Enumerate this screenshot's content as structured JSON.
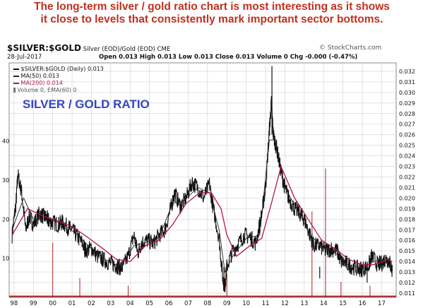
{
  "caption": {
    "line1": "The long-term silver / gold ratio chart is most interesting as it shows",
    "line2": "it close to levels that consistently mark important sector bottoms."
  },
  "header": {
    "symbol": "$SILVER:$GOLD",
    "description": "Silver (EOD)/Gold (EOD) CME",
    "brand": "© StockCharts.com",
    "date": "28-Jul-2017",
    "quote": "Open 0.013  High 0.013  Low 0.013  Close 0.013  Volume 0  Chg -0.000 (-0.47%)"
  },
  "legend": {
    "main": "$SILVER:$GOLD (Daily) 0.013",
    "ma50": "MA(50) 0.013",
    "ma200": "MA(200) 0.014",
    "volume": "Volume 0, EMA(60) 0"
  },
  "overlay_label": "SILVER / GOLD RATIO",
  "colors": {
    "caption": "#c03020",
    "price": "#111111",
    "ma50": "#222222",
    "ma200": "#b01848",
    "volume": "#b02020",
    "overlay": "#3545c0",
    "grid": "#d0d0d0"
  },
  "chart_data": {
    "type": "line",
    "title": "$SILVER:$GOLD",
    "x_label": "",
    "y_label": "",
    "grid": true,
    "x_ticks": [
      "98",
      "99",
      "00",
      "01",
      "02",
      "03",
      "04",
      "05",
      "06",
      "07",
      "08",
      "09",
      "10",
      "11",
      "12",
      "13",
      "14",
      "15",
      "16",
      "17"
    ],
    "y_ticks": [
      0.011,
      0.012,
      0.013,
      0.014,
      0.015,
      0.016,
      0.017,
      0.018,
      0.019,
      0.02,
      0.021,
      0.022,
      0.023,
      0.024,
      0.025,
      0.026,
      0.027,
      0.028,
      0.029,
      0.03,
      0.031,
      0.032
    ],
    "y_range": [
      0.0106,
      0.0328
    ],
    "x_range": [
      1997.75,
      2017.75
    ],
    "volume_ticks": [
      10,
      20,
      30,
      40
    ],
    "volume_range": [
      0,
      60
    ],
    "series": [
      {
        "name": "$SILVER:$GOLD (Daily)",
        "x": [
          1997.9,
          1998.1,
          1998.2,
          1998.4,
          1998.6,
          1998.8,
          1999.0,
          1999.3,
          1999.5,
          1999.7,
          1999.8,
          2000.0,
          2000.3,
          2000.5,
          2000.8,
          2001.0,
          2001.3,
          2001.6,
          2001.7,
          2002.0,
          2002.3,
          2002.6,
          2002.9,
          2003.2,
          2003.4,
          2003.6,
          2003.9,
          2004.2,
          2004.4,
          2004.6,
          2004.9,
          2005.2,
          2005.5,
          2005.8,
          2006.1,
          2006.3,
          2006.6,
          2006.9,
          2007.2,
          2007.5,
          2007.8,
          2008.1,
          2008.3,
          2008.6,
          2008.8,
          2008.9,
          2009.0,
          2009.3,
          2009.6,
          2009.9,
          2010.2,
          2010.5,
          2010.8,
          2011.0,
          2011.2,
          2011.3,
          2011.4,
          2011.6,
          2011.8,
          2012.0,
          2012.2,
          2012.5,
          2012.8,
          2013.0,
          2013.3,
          2013.5,
          2013.8,
          2014.1,
          2014.4,
          2014.7,
          2014.9,
          2015.2,
          2015.5,
          2015.8,
          2016.0,
          2016.3,
          2016.5,
          2016.8,
          2017.0,
          2017.2,
          2017.4,
          2017.55
        ],
        "values": [
          0.0165,
          0.0195,
          0.0222,
          0.0205,
          0.017,
          0.0183,
          0.0175,
          0.0185,
          0.0183,
          0.0181,
          0.0178,
          0.0177,
          0.0175,
          0.0177,
          0.0172,
          0.017,
          0.0163,
          0.0155,
          0.015,
          0.0153,
          0.0145,
          0.0142,
          0.0139,
          0.0137,
          0.0135,
          0.0134,
          0.0145,
          0.0165,
          0.0148,
          0.0158,
          0.016,
          0.0157,
          0.0165,
          0.017,
          0.019,
          0.0205,
          0.0192,
          0.02,
          0.0215,
          0.021,
          0.02,
          0.0213,
          0.019,
          0.0162,
          0.0122,
          0.0117,
          0.0135,
          0.015,
          0.0157,
          0.0165,
          0.0163,
          0.0157,
          0.0185,
          0.021,
          0.0265,
          0.029,
          0.026,
          0.0245,
          0.0225,
          0.021,
          0.02,
          0.019,
          0.0185,
          0.018,
          0.0165,
          0.0155,
          0.0155,
          0.015,
          0.0152,
          0.015,
          0.014,
          0.0138,
          0.0135,
          0.0133,
          0.0133,
          0.0135,
          0.0145,
          0.0137,
          0.0138,
          0.0143,
          0.014,
          0.0131
        ]
      },
      {
        "name": "MA(50)",
        "x": [
          1997.9,
          1998.5,
          1999.0,
          1999.8,
          2000.5,
          2001.3,
          2002.0,
          2002.8,
          2003.5,
          2004.2,
          2004.8,
          2005.5,
          2006.2,
          2006.8,
          2007.5,
          2008.1,
          2008.6,
          2008.9,
          2009.3,
          2010.0,
          2010.7,
          2011.2,
          2011.5,
          2012.0,
          2012.7,
          2013.3,
          2013.8,
          2014.5,
          2015.2,
          2016.0,
          2016.6,
          2017.2,
          2017.55
        ],
        "values": [
          0.017,
          0.02,
          0.018,
          0.018,
          0.0176,
          0.0165,
          0.0152,
          0.0141,
          0.0135,
          0.0155,
          0.0158,
          0.0163,
          0.0195,
          0.0198,
          0.021,
          0.0205,
          0.017,
          0.013,
          0.0145,
          0.0162,
          0.0165,
          0.0255,
          0.0255,
          0.021,
          0.0187,
          0.0165,
          0.0156,
          0.015,
          0.0137,
          0.0134,
          0.014,
          0.0141,
          0.0133
        ]
      },
      {
        "name": "MA(200)",
        "x": [
          1997.9,
          1998.7,
          1999.5,
          2000.3,
          2001.0,
          2001.8,
          2002.6,
          2003.3,
          2004.0,
          2004.8,
          2005.5,
          2006.2,
          2006.9,
          2007.6,
          2008.2,
          2008.7,
          2009.0,
          2009.5,
          2010.2,
          2010.8,
          2011.3,
          2011.8,
          2012.5,
          2013.2,
          2013.9,
          2014.6,
          2015.3,
          2016.0,
          2016.7,
          2017.3,
          2017.55
        ],
        "values": [
          0.0165,
          0.019,
          0.0183,
          0.0178,
          0.0173,
          0.0163,
          0.0152,
          0.0142,
          0.014,
          0.0155,
          0.016,
          0.0175,
          0.0195,
          0.0205,
          0.0205,
          0.019,
          0.0165,
          0.0145,
          0.0155,
          0.0162,
          0.0195,
          0.023,
          0.02,
          0.018,
          0.016,
          0.0152,
          0.0142,
          0.0137,
          0.0137,
          0.0142,
          0.014
        ]
      }
    ]
  }
}
